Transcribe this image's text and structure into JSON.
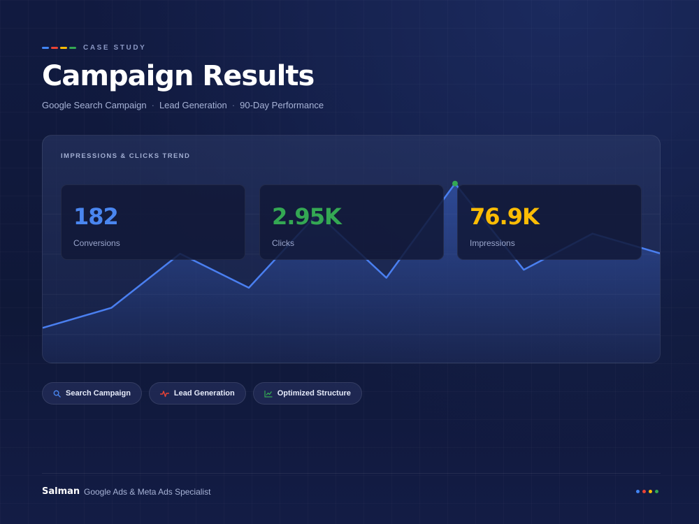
{
  "header": {
    "eyebrow": "CASE STUDY",
    "dash_colors": [
      "#4285f4",
      "#ea4335",
      "#fbbc05",
      "#34a853"
    ],
    "title": "Campaign Results",
    "subtitle": [
      "Google Search Campaign",
      "Lead Generation",
      "90-Day Performance"
    ],
    "subtitle_separator": "·"
  },
  "panel": {
    "label": "IMPRESSIONS & CLICKS TREND",
    "line_color": "#4a7ff0",
    "peak_marker_color": "#34a853",
    "stats": [
      {
        "value": "182",
        "label": "Conversions",
        "color": "#4a86f0"
      },
      {
        "value": "2.95K",
        "label": "Clicks",
        "color": "#34a853"
      },
      {
        "value": "76.9K",
        "label": "Impressions",
        "color": "#fbbc05"
      }
    ]
  },
  "chart_data": {
    "type": "area",
    "title": "IMPRESSIONS & CLICKS TREND",
    "x": [
      0,
      1,
      2,
      3,
      4,
      5,
      6,
      7,
      8,
      9
    ],
    "values": [
      18,
      28,
      55,
      38,
      75,
      43,
      90,
      47,
      65,
      55
    ],
    "ylim": [
      0,
      100
    ],
    "grid": true,
    "highlight_index": 6
  },
  "chips": [
    {
      "label": "Search Campaign",
      "icon": "search-icon",
      "icon_color": "#4a86f0"
    },
    {
      "label": "Lead Generation",
      "icon": "pulse-icon",
      "icon_color": "#ea4335"
    },
    {
      "label": "Optimized Structure",
      "icon": "trend-icon",
      "icon_color": "#34a853"
    }
  ],
  "footer": {
    "name": "Salman",
    "role": "Google Ads & Meta Ads Specialist",
    "dot_colors": [
      "#4285f4",
      "#ea4335",
      "#fbbc05",
      "#34a853"
    ]
  }
}
